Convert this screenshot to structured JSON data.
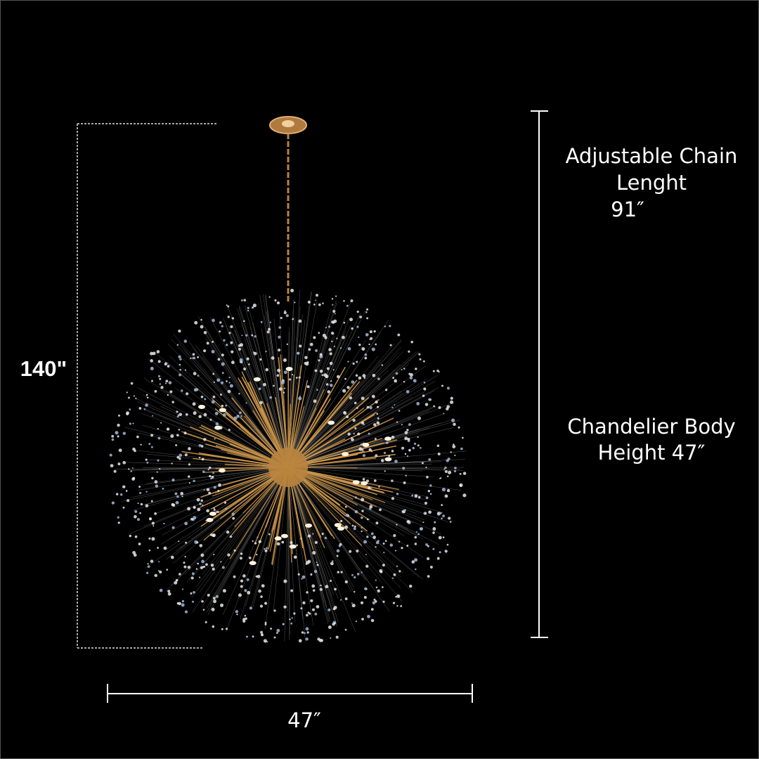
{
  "overall_height": "140\"",
  "chain_label": {
    "lines": [
      "Adjustable Chain",
      "Lenght",
      "91″"
    ]
  },
  "body_label": {
    "lines": [
      "Chandelier Body",
      "Height 47″"
    ]
  },
  "width_label": "47″"
}
